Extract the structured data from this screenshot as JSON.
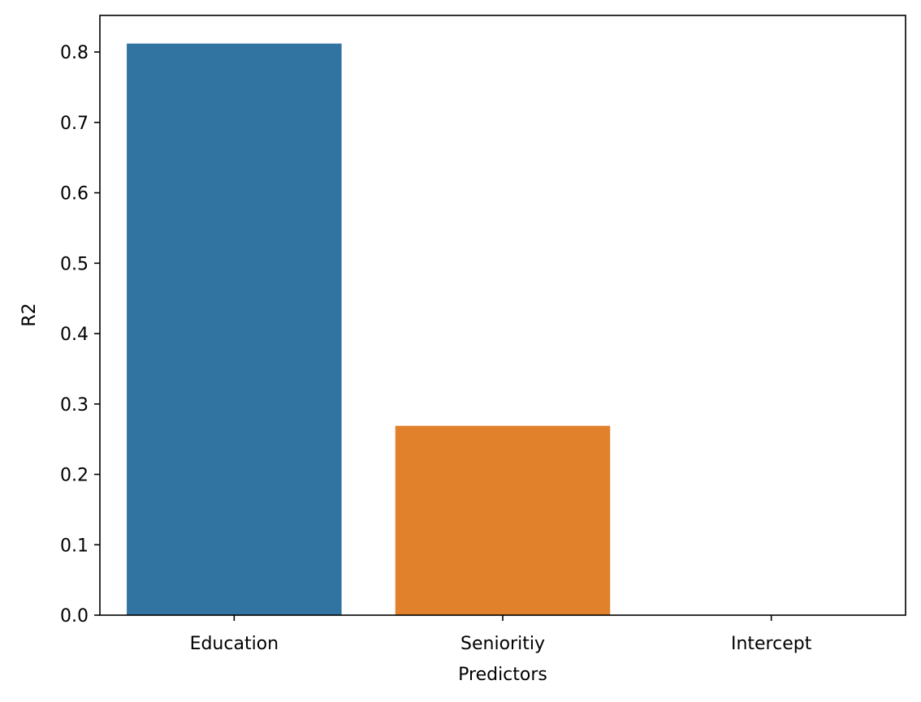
{
  "chart_data": {
    "type": "bar",
    "title": "",
    "xlabel": "Predictors",
    "ylabel": "R2",
    "categories": [
      "Education",
      "Senioritiy",
      "Intercept"
    ],
    "values": [
      0.812,
      0.269,
      0.0
    ],
    "colors": [
      "#3274a1",
      "#e1812c",
      "#3a923a"
    ],
    "ylim": [
      0,
      0.852
    ],
    "yticks": [
      0.0,
      0.1,
      0.2,
      0.3,
      0.4,
      0.5,
      0.6,
      0.7,
      0.8
    ],
    "ytick_labels": [
      "0.0",
      "0.1",
      "0.2",
      "0.3",
      "0.4",
      "0.5",
      "0.6",
      "0.7",
      "0.8"
    ],
    "grid": false,
    "legend": "none"
  }
}
